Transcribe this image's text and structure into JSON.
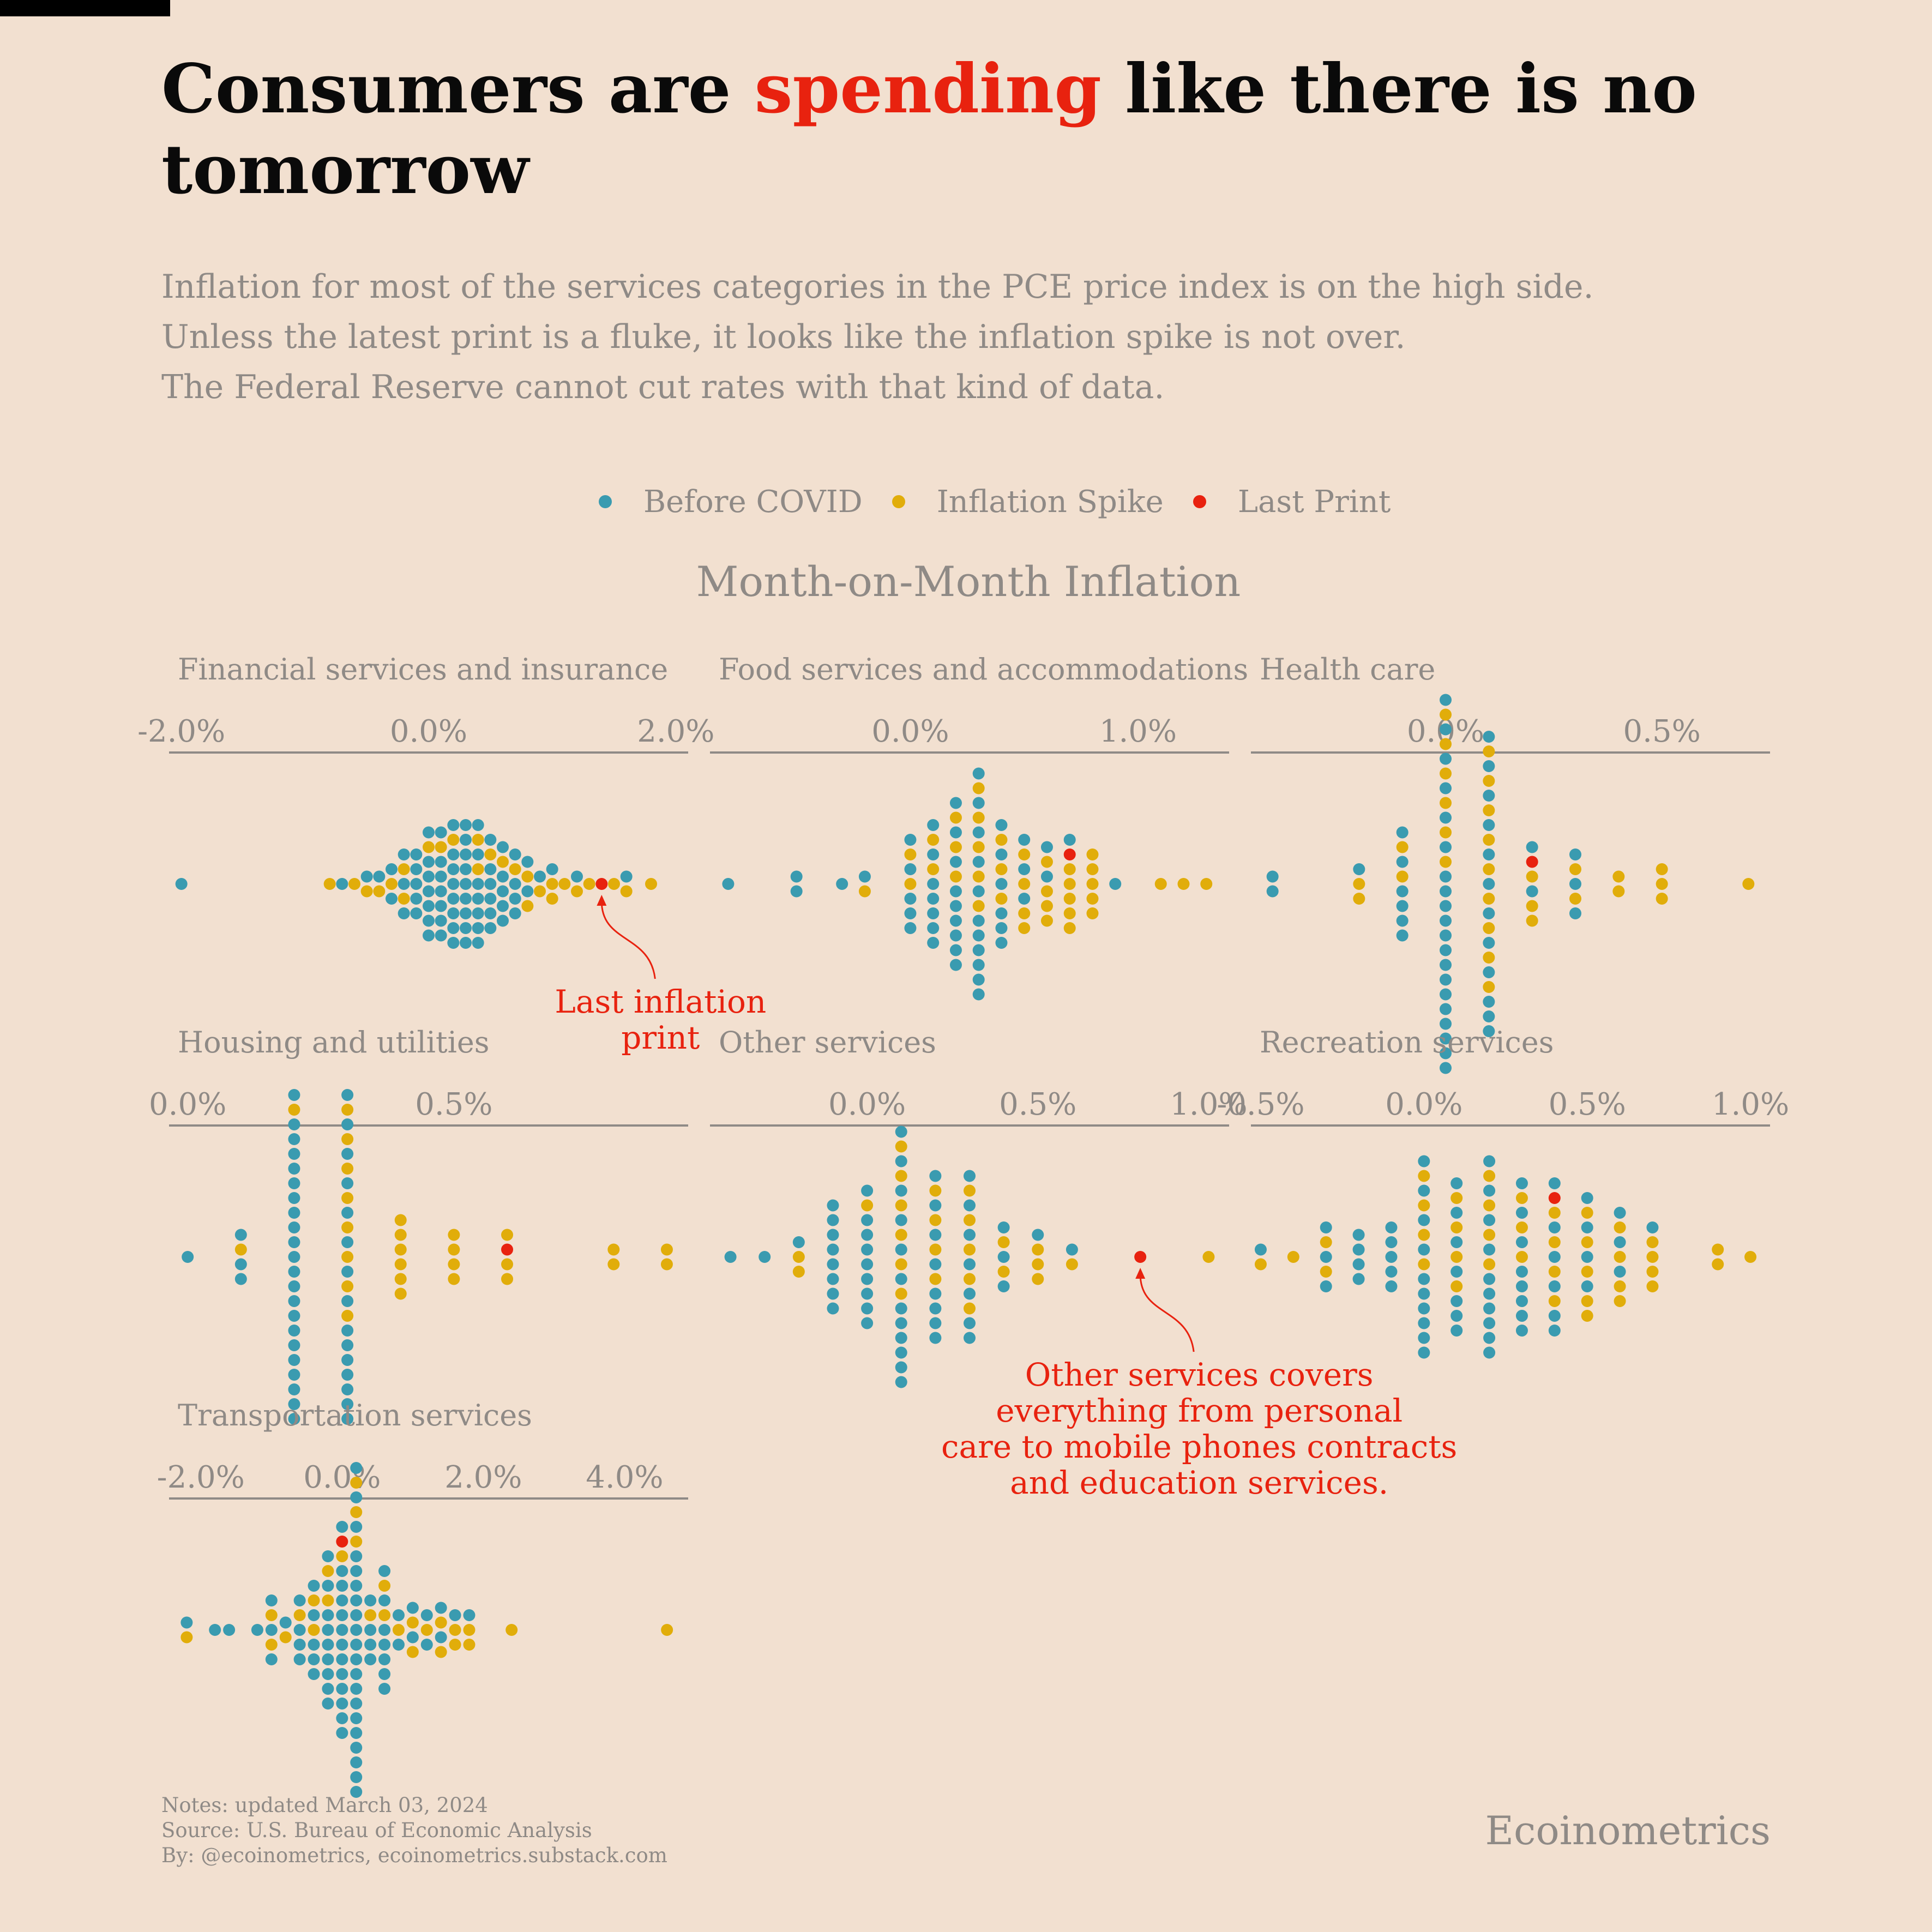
{
  "header": {
    "title_before": "Consumers are ",
    "title_highlight": "spending",
    "title_after": " like there is no tomorrow",
    "subtitle_lines": [
      "Inflation for most of the services categories in the PCE price index is on the high side.",
      "Unless the latest print is a fluke, it looks like the inflation spike is not over.",
      "The Federal Reserve cannot cut rates with that kind of data."
    ]
  },
  "legend": [
    {
      "label": "Before COVID",
      "color": "#3a9bb0"
    },
    {
      "label": "Inflation Spike",
      "color": "#e1ad0a"
    },
    {
      "label": "Last Print",
      "color": "#e8220f"
    }
  ],
  "colors": {
    "before": "#3a9bb0",
    "spike": "#e1ad0a",
    "last": "#e8220f",
    "axis": "#8f8a86",
    "annotation": "#e8220f",
    "background": "#f2e0d0"
  },
  "footer": {
    "notes": "Notes: updated March 03, 2024",
    "source": "Source: U.S. Bureau of Economic Analysis",
    "by": "By: @ecoinometrics, ecoinometrics.substack.com",
    "brand": "Ecoinometrics"
  },
  "chart_data": {
    "type": "scatter",
    "title": "Month-on-Month Inflation",
    "panels": [
      {
        "name": "Financial services and insurance",
        "ticks": [
          -2.0,
          0.0,
          2.0
        ],
        "tick_labels": [
          "-2.0%",
          "0.0%",
          "2.0%"
        ],
        "xlim": [
          -2.1,
          2.1
        ],
        "bin": 0.1,
        "before": [
          -2.0,
          -0.7,
          -0.5,
          -0.4,
          -0.3,
          -0.3,
          -0.2,
          -0.2,
          -0.2,
          -0.1,
          -0.1,
          -0.1,
          -0.1,
          -0.1,
          0.0,
          0.0,
          0.0,
          0.0,
          0.0,
          0.0,
          0.0,
          0.1,
          0.1,
          0.1,
          0.1,
          0.1,
          0.1,
          0.1,
          0.2,
          0.2,
          0.2,
          0.2,
          0.2,
          0.2,
          0.2,
          0.2,
          0.3,
          0.3,
          0.3,
          0.3,
          0.3,
          0.3,
          0.3,
          0.3,
          0.3,
          0.4,
          0.4,
          0.4,
          0.4,
          0.4,
          0.4,
          0.4,
          0.5,
          0.5,
          0.5,
          0.5,
          0.5,
          0.5,
          0.6,
          0.6,
          0.6,
          0.6,
          0.6,
          0.7,
          0.7,
          0.7,
          0.7,
          0.8,
          0.8,
          0.9,
          1.0,
          1.2,
          1.6
        ],
        "spike": [
          -0.8,
          -0.6,
          -0.5,
          -0.4,
          -0.3,
          -0.2,
          -0.2,
          0.0,
          0.1,
          0.2,
          0.4,
          0.4,
          0.5,
          0.6,
          0.7,
          0.8,
          0.8,
          0.9,
          1.0,
          1.0,
          1.1,
          1.2,
          1.3,
          1.5,
          1.6,
          1.8
        ],
        "last": 1.35
      },
      {
        "name": "Food services and accommodations",
        "ticks": [
          0.0,
          1.0
        ],
        "tick_labels": [
          "0.0%",
          "1.0%"
        ],
        "xlim": [
          -0.88,
          1.4
        ],
        "bin": 0.05,
        "before": [
          -0.8,
          -0.5,
          -0.5,
          -0.3,
          -0.2,
          0.0,
          0.0,
          0.0,
          0.0,
          0.0,
          0.1,
          0.1,
          0.1,
          0.1,
          0.1,
          0.1,
          0.1,
          0.2,
          0.2,
          0.2,
          0.2,
          0.2,
          0.2,
          0.2,
          0.2,
          0.2,
          0.3,
          0.3,
          0.3,
          0.3,
          0.3,
          0.3,
          0.3,
          0.3,
          0.3,
          0.3,
          0.3,
          0.4,
          0.4,
          0.4,
          0.4,
          0.4,
          0.4,
          0.5,
          0.5,
          0.5,
          0.6,
          0.6,
          0.7,
          0.9
        ],
        "spike": [
          -0.2,
          0.0,
          0.0,
          0.1,
          0.1,
          0.2,
          0.2,
          0.2,
          0.3,
          0.3,
          0.3,
          0.3,
          0.3,
          0.4,
          0.4,
          0.4,
          0.5,
          0.5,
          0.5,
          0.5,
          0.6,
          0.6,
          0.6,
          0.6,
          0.7,
          0.7,
          0.7,
          0.7,
          0.7,
          0.8,
          0.8,
          0.8,
          0.8,
          0.8,
          1.1,
          1.2,
          1.3
        ],
        "last": 0.7
      },
      {
        "name": "Health care",
        "ticks": [
          0.0,
          0.5
        ],
        "tick_labels": [
          "0.0%",
          "0.5%"
        ],
        "xlim": [
          -0.45,
          0.75
        ],
        "bin": 0.1,
        "before": [
          -0.4,
          -0.4,
          -0.2,
          -0.1,
          -0.1,
          -0.1,
          -0.1,
          -0.1,
          -0.1,
          0.0,
          0.0,
          0.0,
          0.0,
          0.0,
          0.0,
          0.0,
          0.0,
          0.0,
          0.0,
          0.0,
          0.0,
          0.0,
          0.0,
          0.0,
          0.0,
          0.0,
          0.0,
          0.0,
          0.0,
          0.1,
          0.1,
          0.1,
          0.1,
          0.1,
          0.1,
          0.1,
          0.1,
          0.1,
          0.1,
          0.1,
          0.1,
          0.2,
          0.2,
          0.3,
          0.3,
          0.3
        ],
        "spike": [
          -0.2,
          -0.2,
          -0.1,
          -0.1,
          0.0,
          0.0,
          0.0,
          0.0,
          0.0,
          0.0,
          0.1,
          0.1,
          0.1,
          0.1,
          0.1,
          0.1,
          0.1,
          0.1,
          0.1,
          0.2,
          0.2,
          0.2,
          0.3,
          0.3,
          0.4,
          0.4,
          0.5,
          0.5,
          0.5,
          0.7
        ],
        "last": 0.2
      },
      {
        "name": "Housing and utilities",
        "ticks": [
          0.0,
          0.5
        ],
        "tick_labels": [
          "0.0%",
          "0.5%"
        ],
        "xlim": [
          -0.035,
          0.94
        ],
        "bin": 0.1,
        "before": [
          0.0,
          0.1,
          0.1,
          0.1,
          0.2,
          0.2,
          0.2,
          0.2,
          0.2,
          0.2,
          0.2,
          0.2,
          0.2,
          0.2,
          0.2,
          0.2,
          0.2,
          0.2,
          0.2,
          0.2,
          0.2,
          0.2,
          0.2,
          0.2,
          0.2,
          0.2,
          0.3,
          0.3,
          0.3,
          0.3,
          0.3,
          0.3,
          0.3,
          0.3,
          0.3,
          0.3,
          0.3,
          0.3,
          0.3,
          0.3,
          0.3
        ],
        "spike": [
          0.1,
          0.2,
          0.3,
          0.3,
          0.3,
          0.3,
          0.3,
          0.3,
          0.3,
          0.3,
          0.4,
          0.4,
          0.4,
          0.4,
          0.4,
          0.4,
          0.5,
          0.5,
          0.5,
          0.5,
          0.6,
          0.6,
          0.6,
          0.8,
          0.8,
          0.9,
          0.9
        ],
        "last": 0.6
      },
      {
        "name": "Other services",
        "ticks": [
          0.0,
          0.5,
          1.0
        ],
        "tick_labels": [
          "0.0%",
          "0.5%",
          "1.0%"
        ],
        "xlim": [
          -0.46,
          1.06
        ],
        "bin": 0.1,
        "before": [
          -0.4,
          -0.3,
          -0.2,
          -0.1,
          -0.1,
          -0.1,
          -0.1,
          -0.1,
          -0.1,
          -0.1,
          -0.1,
          0.0,
          0.0,
          0.0,
          0.0,
          0.0,
          0.0,
          0.0,
          0.0,
          0.0,
          0.1,
          0.1,
          0.1,
          0.1,
          0.1,
          0.1,
          0.1,
          0.1,
          0.1,
          0.1,
          0.1,
          0.1,
          0.2,
          0.2,
          0.2,
          0.2,
          0.2,
          0.2,
          0.2,
          0.2,
          0.3,
          0.3,
          0.3,
          0.3,
          0.3,
          0.3,
          0.3,
          0.4,
          0.4,
          0.4,
          0.5,
          0.6
        ],
        "spike": [
          -0.2,
          -0.2,
          0.0,
          0.1,
          0.1,
          0.1,
          0.1,
          0.1,
          0.1,
          0.2,
          0.2,
          0.2,
          0.2,
          0.3,
          0.3,
          0.3,
          0.3,
          0.3,
          0.4,
          0.4,
          0.5,
          0.5,
          0.5,
          0.6,
          1.0
        ],
        "last": 0.8
      },
      {
        "name": "Recreation services",
        "ticks": [
          -0.5,
          0.0,
          0.5,
          1.0
        ],
        "tick_labels": [
          "-0.5%",
          "0.0%",
          "0.5%",
          "1.0%"
        ],
        "xlim": [
          -0.53,
          1.06
        ],
        "bin": 0.1,
        "before": [
          -0.5,
          -0.3,
          -0.3,
          -0.3,
          -0.2,
          -0.2,
          -0.2,
          -0.2,
          -0.1,
          -0.1,
          -0.1,
          -0.1,
          -0.1,
          0.0,
          0.0,
          0.0,
          0.0,
          0.0,
          0.0,
          0.0,
          0.0,
          0.0,
          0.0,
          0.1,
          0.1,
          0.1,
          0.1,
          0.1,
          0.1,
          0.1,
          0.2,
          0.2,
          0.2,
          0.2,
          0.2,
          0.2,
          0.2,
          0.2,
          0.2,
          0.2,
          0.3,
          0.3,
          0.3,
          0.3,
          0.3,
          0.3,
          0.3,
          0.3,
          0.4,
          0.4,
          0.4,
          0.4,
          0.4,
          0.4,
          0.5,
          0.5,
          0.5,
          0.5,
          0.6,
          0.6,
          0.6,
          0.7
        ],
        "spike": [
          -0.5,
          -0.4,
          -0.3,
          -0.3,
          0.0,
          0.0,
          0.0,
          0.0,
          0.1,
          0.1,
          0.1,
          0.1,
          0.2,
          0.2,
          0.2,
          0.2,
          0.3,
          0.3,
          0.3,
          0.4,
          0.4,
          0.4,
          0.4,
          0.5,
          0.5,
          0.5,
          0.5,
          0.5,
          0.6,
          0.6,
          0.6,
          0.6,
          0.7,
          0.7,
          0.7,
          0.7,
          0.9,
          0.9,
          1.0
        ],
        "last": 0.4
      },
      {
        "name": "Transportation services",
        "ticks": [
          -2.0,
          0.0,
          2.0,
          4.0
        ],
        "tick_labels": [
          "-2.0%",
          "0.0%",
          "2.0%",
          "4.0%"
        ],
        "xlim": [
          -2.45,
          4.9
        ],
        "bin": 0.2,
        "before": [
          -2.2,
          -1.9,
          -1.7,
          -1.2,
          -1.1,
          -1.0,
          -1.0,
          -0.8,
          -0.7,
          -0.6,
          -0.6,
          -0.6,
          -0.5,
          -0.5,
          -0.4,
          -0.4,
          -0.4,
          -0.3,
          -0.3,
          -0.3,
          -0.3,
          -0.2,
          -0.2,
          -0.2,
          -0.2,
          -0.2,
          -0.1,
          -0.1,
          -0.1,
          -0.1,
          -0.1,
          -0.1,
          0.0,
          0.0,
          0.0,
          0.0,
          0.0,
          0.0,
          0.0,
          0.1,
          0.1,
          0.1,
          0.1,
          0.1,
          0.1,
          0.1,
          0.1,
          0.2,
          0.2,
          0.2,
          0.2,
          0.2,
          0.2,
          0.2,
          0.3,
          0.3,
          0.3,
          0.3,
          0.3,
          0.4,
          0.4,
          0.4,
          0.4,
          0.5,
          0.5,
          0.5,
          0.6,
          0.6,
          0.7,
          0.7,
          0.8,
          0.8,
          0.9,
          1.0,
          1.1,
          1.2,
          1.3,
          1.4,
          1.5,
          1.9
        ],
        "spike": [
          -2.2,
          -1.1,
          -1.0,
          -0.8,
          -0.6,
          -0.5,
          -0.4,
          -0.3,
          -0.2,
          0.0,
          0.1,
          0.2,
          0.3,
          0.4,
          0.6,
          0.7,
          0.8,
          0.9,
          1.0,
          1.2,
          1.3,
          1.4,
          1.5,
          1.6,
          1.7,
          1.8,
          2.4,
          4.6
        ],
        "last": 0.0
      }
    ],
    "annotations": [
      {
        "panel": 0,
        "text": [
          "Last inflation",
          "print"
        ]
      },
      {
        "panel": 4,
        "text": [
          "Other services covers",
          "everything from personal",
          "care to mobile phones contracts",
          "and education services."
        ]
      }
    ]
  }
}
